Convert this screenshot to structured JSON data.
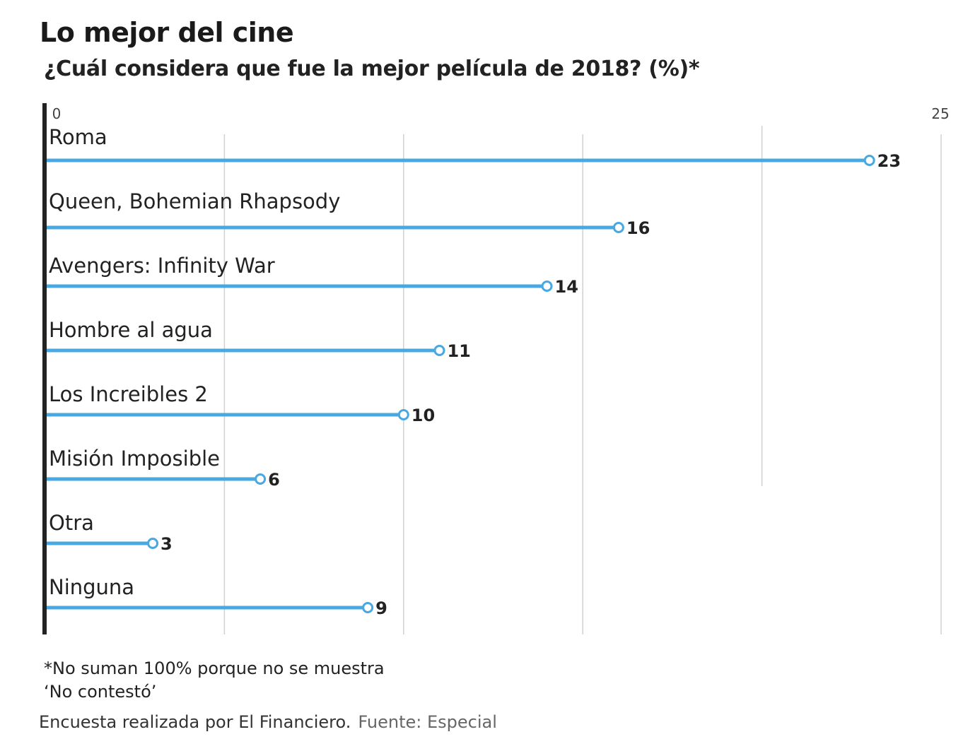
{
  "header": {
    "title": "Lo mejor del cine",
    "subtitle": "¿Cuál considera que fue la mejor película de 2018?  (%)*"
  },
  "chart_data": {
    "type": "bar",
    "style": "lollipop",
    "orientation": "horizontal",
    "title": "Lo mejor del cine",
    "subtitle": "¿Cuál considera que fue la mejor película de 2018?  (%)*",
    "xlim": [
      0,
      25
    ],
    "tick_labels": {
      "min": "0",
      "max": "25"
    },
    "grid": true,
    "categories": [
      "Roma",
      "Queen, Bohemian Rhapsody",
      "Avengers: Infinity War",
      "Hombre al agua",
      "Los Increibles 2",
      "Misión Imposible",
      "Otra",
      "Ninguna"
    ],
    "values": [
      23,
      16,
      14,
      11,
      10,
      6,
      3,
      9
    ],
    "value_labels": [
      "23",
      "16",
      "14",
      "11",
      "10",
      "6",
      "3",
      "9"
    ],
    "bar_color": "#4aa8e0",
    "axis_color": "#222222",
    "grid_color": "#d0d0d0"
  },
  "footer": {
    "note_line1": "*No suman 100% porque no se muestra",
    "note_line2": "‘No contestó’",
    "source_main": "Encuesta realizada por El Financiero.",
    "source_tag": "Fuente: Especial"
  }
}
